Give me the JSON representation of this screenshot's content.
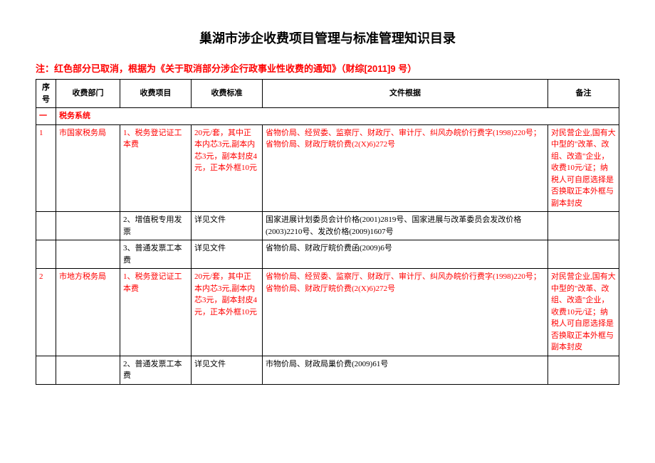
{
  "title": "巢湖市涉企收费项目管理与标准管理知识目录",
  "note": "注：红色部分已取消，根据为《关于取消部分涉企行政事业性收费的通知》（财综[2011]9 号）",
  "columns": {
    "seq": "序号",
    "dept": "收费部门",
    "item": "收费项目",
    "std": "收费标准",
    "basis": "文件根据",
    "remark": "备注"
  },
  "section": {
    "num": "一",
    "label": "税务系统"
  },
  "rows": [
    {
      "seq": "1",
      "dept": "市国家税务局",
      "item": "1、税务登记证工本费",
      "std": "20元/套，其中正本内芯3元,副本内芯3元，副本封皮4元，正本外框10元",
      "basis": "省物价局、经贸委、监察厅、财政厅、审计厅、纠风办皖价行费字(1998)220号；省物价局、财政厅皖价费(2(X)6)272号",
      "remark": "对民营企业,国有大中型的\"改革、改组、改造\"企业，收费10元/证；纳税人可自愿选择是否换取正本外框与副本封皮",
      "red": true
    },
    {
      "seq": "",
      "dept": "",
      "item": "2、增值税专用发票",
      "std": "详见文件",
      "basis": "国家进展计划委员会计价格(2001)2819号、国家进展与改革委员会发改价格(2003)2210号、发改价格(2009)1607号",
      "remark": "",
      "red": false
    },
    {
      "seq": "",
      "dept": "",
      "item": "3、普通发票工本费",
      "std": "详见文件",
      "basis": "省物价局、财政厅皖价费函(2009)6号",
      "remark": "",
      "red": false
    },
    {
      "seq": "2",
      "dept": "市地方税务局",
      "item": "1、税务登记证工本费",
      "std": "20元/套，其中正本内芯3元,副本内芯3元，副本封皮4元，正本外框10元",
      "basis": "省物价局、经贸委、监察厅、财政厅、审计厅、纠风办皖价行费字(1998)220号；省物价局、财政厅皖价费(2(X)6)272号",
      "remark": "对民营企业,国有大中型的\"改革、改组、改造\"企业，收费10元/证；纳税人可自愿选择是否换取正本外框与副本封皮",
      "red": true
    },
    {
      "seq": "",
      "dept": "",
      "item": "2、普通发票工本费",
      "std": "详见文件",
      "basis": "市物价局、财政局巢价费(2009)61号",
      "remark": "",
      "red": false
    }
  ]
}
